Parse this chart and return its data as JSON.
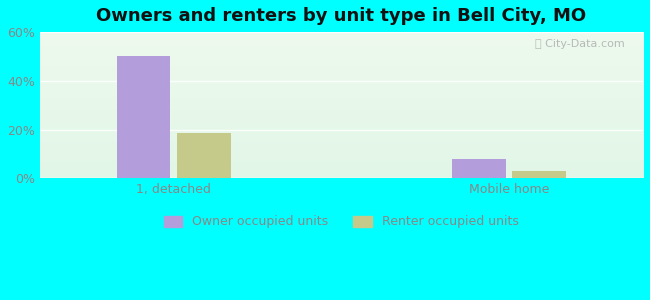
{
  "title": "Owners and renters by unit type in Bell City, MO",
  "categories": [
    "1, detached",
    "Mobile home"
  ],
  "owner_values": [
    50.0,
    8.0
  ],
  "renter_values": [
    18.5,
    3.0
  ],
  "owner_color": "#b39ddb",
  "renter_color": "#c5c98a",
  "ylim": [
    0,
    60
  ],
  "yticks": [
    0,
    20,
    40,
    60
  ],
  "ytick_labels": [
    "0%",
    "20%",
    "40%",
    "60%"
  ],
  "outer_bg": "#00ffff",
  "plot_bg_topleft": "#cceedd",
  "plot_bg_bottomright": "#eef8ee",
  "legend_labels": [
    "Owner occupied units",
    "Renter occupied units"
  ],
  "bar_width": 0.32,
  "group_positions": [
    1.0,
    3.0
  ],
  "watermark": "City-Data.com",
  "title_fontsize": 13,
  "tick_fontsize": 9,
  "legend_fontsize": 9,
  "grid_color": "#ddeecc",
  "tick_color": "#888888"
}
